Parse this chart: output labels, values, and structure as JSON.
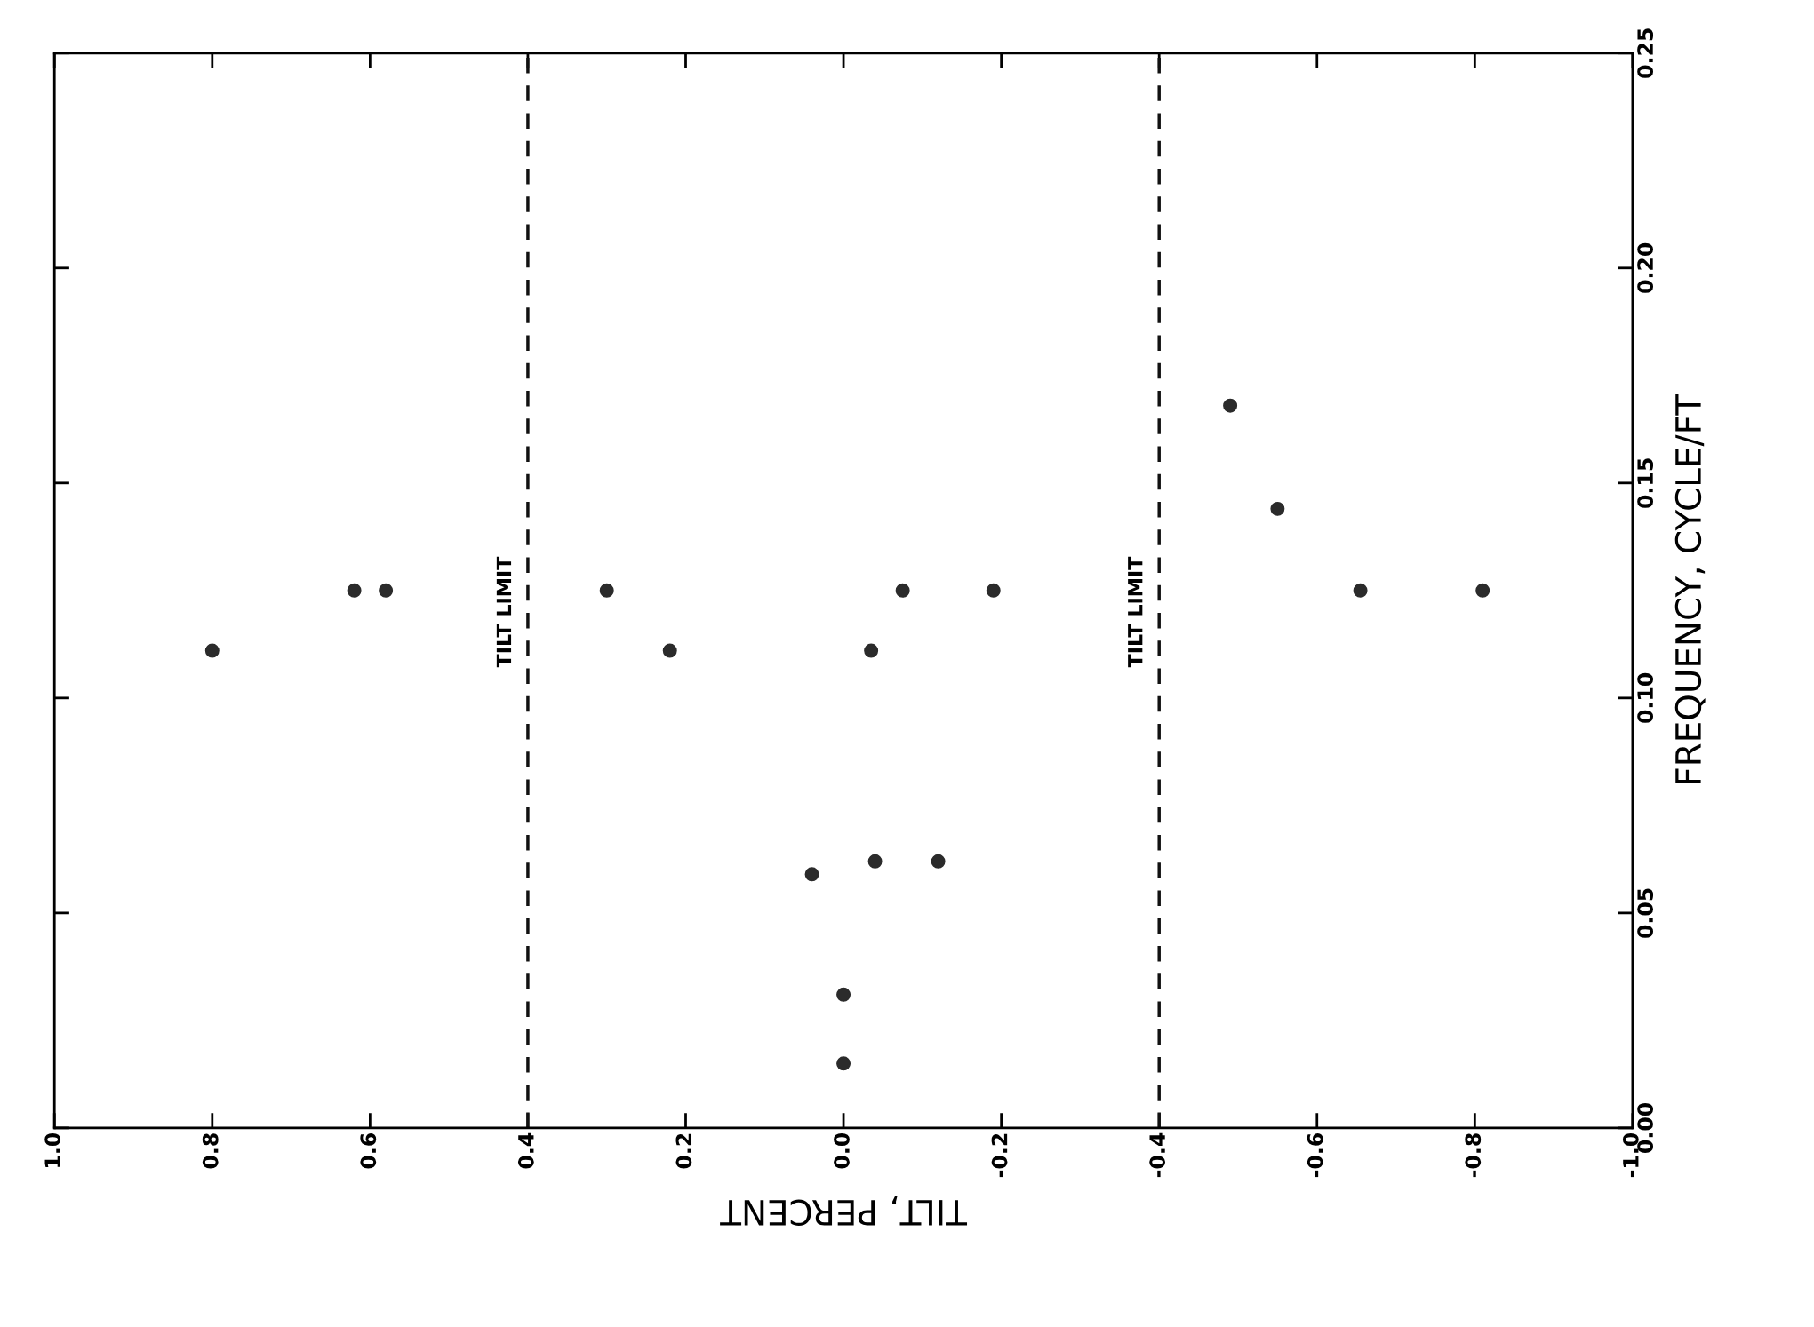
{
  "chart_data": {
    "type": "scatter",
    "xlabel": "TILT, PERCENT",
    "ylabel": "FREQUENCY, CYCLE/FT",
    "x": [
      0.8,
      0.62,
      0.58,
      0.3,
      0.22,
      -0.075,
      -0.035,
      -0.19,
      0.04,
      -0.04,
      -0.12,
      0.0,
      0.0,
      -0.49,
      -0.55,
      -0.655,
      -0.81
    ],
    "values": [
      0.111,
      0.125,
      0.125,
      0.125,
      0.111,
      0.125,
      0.111,
      0.125,
      0.059,
      0.062,
      0.062,
      0.031,
      0.015,
      0.168,
      0.144,
      0.125,
      0.125
    ],
    "color": "#2b2b2b",
    "marker": "circle",
    "xlim": [
      1.0,
      -1.0
    ],
    "ylim": [
      0.0,
      0.25
    ],
    "xticks": [
      {
        "value": 1.0,
        "label": "1.0"
      },
      0.8,
      0.6,
      0.4,
      0.2,
      {
        "value": 0.0,
        "label": "0.0"
      },
      -0.2,
      -0.4,
      -0.6,
      -0.8,
      {
        "value": -1.0,
        "label": "-1.0"
      }
    ],
    "yticks": [
      {
        "value": 0.0,
        "label": "0.00"
      },
      {
        "value": 0.05,
        "label": "0.05"
      },
      {
        "value": 0.1,
        "label": "0.10"
      },
      {
        "value": 0.15,
        "label": "0.15"
      },
      {
        "value": 0.2,
        "label": "0.20"
      },
      {
        "value": 0.25,
        "label": "0.25"
      }
    ],
    "ref_lines": [
      {
        "axis": "x",
        "value": 0.4,
        "label": "TILT LIMIT",
        "line_style": "dashed"
      },
      {
        "axis": "x",
        "value": -0.4,
        "label": "TILT LIMIT",
        "line_style": "dashed"
      }
    ],
    "grid": false,
    "legend": false
  }
}
